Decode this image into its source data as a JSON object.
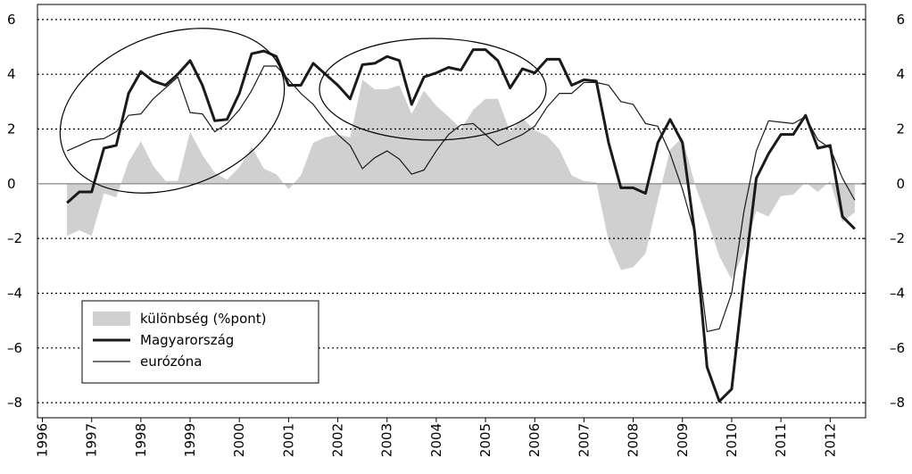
{
  "chart_data": {
    "type": "line",
    "x": [
      1996.5,
      1996.75,
      1997,
      1997.25,
      1997.5,
      1997.75,
      1998,
      1998.25,
      1998.5,
      1998.75,
      1999,
      1999.25,
      1999.5,
      1999.75,
      2000,
      2000.25,
      2000.5,
      2000.75,
      2001,
      2001.25,
      2001.5,
      2001.75,
      2002,
      2002.25,
      2002.5,
      2002.75,
      2003,
      2003.25,
      2003.5,
      2003.75,
      2004,
      2004.25,
      2004.5,
      2004.75,
      2005,
      2005.25,
      2005.5,
      2005.75,
      2006,
      2006.25,
      2006.5,
      2006.75,
      2007,
      2007.25,
      2007.5,
      2007.75,
      2008,
      2008.25,
      2008.5,
      2008.75,
      2009,
      2009.25,
      2009.5,
      2009.75,
      2010,
      2010.25,
      2010.5,
      2010.75,
      2011,
      2011.25,
      2011.5,
      2011.75,
      2012,
      2012.25,
      2012.5
    ],
    "series": [
      {
        "name": "különbség (%pont)",
        "kind": "area",
        "color": "#d0d0d0",
        "values": [
          -1.9,
          -1.7,
          -1.9,
          -0.35,
          -0.5,
          0.8,
          1.55,
          0.65,
          0.1,
          0.1,
          1.9,
          1.05,
          0.4,
          0.15,
          0.6,
          1.35,
          0.55,
          0.35,
          -0.2,
          0.3,
          1.5,
          1.7,
          1.8,
          1.7,
          3.8,
          3.45,
          3.45,
          3.6,
          2.55,
          3.4,
          2.85,
          2.45,
          2.0,
          2.7,
          3.1,
          3.1,
          1.9,
          2.4,
          1.95,
          1.75,
          1.25,
          0.3,
          0.1,
          0.05,
          -2.1,
          -3.15,
          -3.05,
          -2.55,
          -0.6,
          1.25,
          1.7,
          0,
          -1.3,
          -2.65,
          -3.5,
          -2.5,
          -1.0,
          -1.2,
          -0.45,
          -0.4,
          0.05,
          -0.3,
          0.1,
          -1.4,
          -1.05
        ]
      },
      {
        "name": "Magyarország",
        "kind": "line",
        "color": "#1a1a1a",
        "width": 3,
        "values": [
          -0.7,
          -0.3,
          -0.3,
          1.3,
          1.4,
          3.3,
          4.1,
          3.75,
          3.6,
          4.0,
          4.5,
          3.6,
          2.3,
          2.35,
          3.3,
          4.75,
          4.85,
          4.65,
          3.6,
          3.6,
          4.4,
          4.0,
          3.6,
          3.1,
          4.35,
          4.4,
          4.65,
          4.5,
          2.9,
          3.9,
          4.05,
          4.25,
          4.15,
          4.9,
          4.9,
          4.5,
          3.5,
          4.2,
          4.05,
          4.55,
          4.55,
          3.6,
          3.8,
          3.75,
          1.5,
          -0.15,
          -0.15,
          -0.35,
          1.5,
          2.35,
          1.5,
          -1.8,
          -6.7,
          -7.95,
          -7.5,
          -3.5,
          0.2,
          1.1,
          1.8,
          1.8,
          2.5,
          1.3,
          1.4,
          -1.2,
          -1.65
        ]
      },
      {
        "name": "eurózóna",
        "kind": "line",
        "color": "#1a1a1a",
        "width": 1.2,
        "values": [
          1.2,
          1.4,
          1.6,
          1.65,
          1.9,
          2.5,
          2.55,
          3.1,
          3.5,
          3.9,
          2.6,
          2.55,
          1.9,
          2.2,
          2.7,
          3.4,
          4.3,
          4.3,
          3.8,
          3.3,
          2.9,
          2.3,
          1.8,
          1.4,
          0.55,
          0.95,
          1.2,
          0.9,
          0.35,
          0.5,
          1.2,
          1.8,
          2.15,
          2.2,
          1.8,
          1.4,
          1.6,
          1.8,
          2.1,
          2.8,
          3.3,
          3.3,
          3.7,
          3.7,
          3.6,
          3.0,
          2.9,
          2.2,
          2.1,
          1.1,
          -0.2,
          -1.8,
          -5.4,
          -5.3,
          -4.0,
          -1.0,
          1.2,
          2.3,
          2.25,
          2.2,
          2.45,
          1.6,
          1.3,
          0.2,
          -0.6
        ]
      }
    ],
    "xlim": [
      1995.9,
      2012.72
    ],
    "xticks": [
      1996,
      1997,
      1998,
      1999,
      2000,
      2001,
      2002,
      2003,
      2004,
      2005,
      2006,
      2007,
      2008,
      2009,
      2010,
      2011,
      2012
    ],
    "ylim": [
      -8.55,
      6.55
    ],
    "yticks": [
      {
        "value": -8,
        "label": "–8"
      },
      {
        "value": -6,
        "label": "–6"
      },
      {
        "value": -4,
        "label": "–4"
      },
      {
        "value": -2,
        "label": "–2"
      },
      0,
      2,
      4,
      6
    ],
    "y2lim": [
      -8.55,
      6.55
    ],
    "y2ticks": [
      {
        "value": -8,
        "label": "–8"
      },
      {
        "value": -6,
        "label": "–6"
      },
      {
        "value": -4,
        "label": "–4"
      },
      {
        "value": -2,
        "label": "–2"
      },
      0,
      2,
      4,
      6
    ],
    "grid": true,
    "legend": "lower left"
  }
}
